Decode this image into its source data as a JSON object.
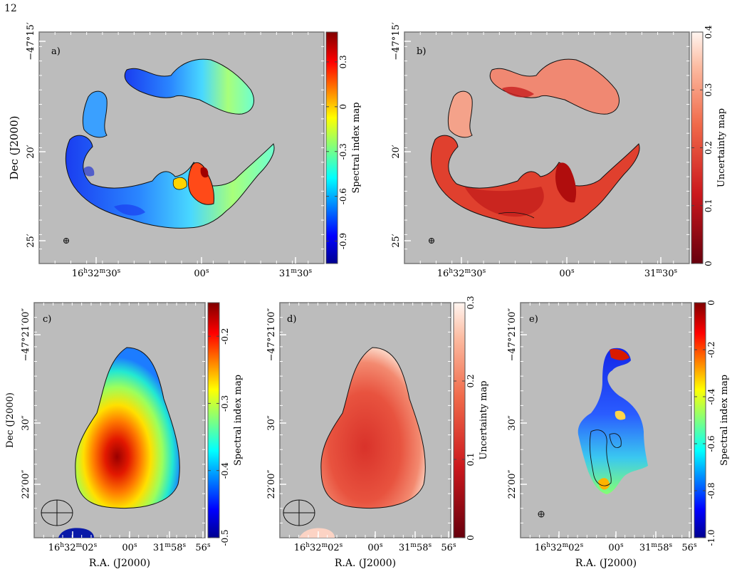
{
  "page_number": "12",
  "labels": {
    "dec": "Dec (J2000)",
    "ra": "R.A. (J2000)",
    "spectral": "Spectral index map",
    "uncert": "Uncertainty map"
  },
  "panels": [
    {
      "id": "a",
      "tag": "a)",
      "colormap": "jet",
      "cbar_label": "Spectral index map",
      "cbar_range": [
        -1.05,
        0.5
      ],
      "cbar_ticks": [
        "0.3",
        "0",
        "-0.3",
        "-0.6",
        "-0.9"
      ],
      "y_ticks": [
        "−47°15′",
        "20′",
        "25′"
      ],
      "x_ticks": [
        "16h32m30s",
        "00s",
        "31m30s"
      ]
    },
    {
      "id": "b",
      "tag": "b)",
      "colormap": "reds",
      "cbar_label": "Uncertainty map",
      "cbar_range": [
        0,
        0.4
      ],
      "cbar_ticks": [
        "0.4",
        "0.3",
        "0.2",
        "0.1",
        "0"
      ],
      "y_ticks": [
        "−47°15′",
        "20′",
        "25′"
      ],
      "x_ticks": [
        "16h32m30s",
        "00s",
        "31m30s"
      ]
    },
    {
      "id": "c",
      "tag": "c)",
      "colormap": "jet",
      "cbar_label": "Spectral index map",
      "cbar_range": [
        -0.5,
        -0.15
      ],
      "cbar_ticks": [
        "-0.2",
        "-0.3",
        "-0.4",
        "-0.5"
      ],
      "y_ticks": [
        "−47°21′00″",
        "30″",
        "22′00″"
      ],
      "x_ticks": [
        "16h32m02s",
        "00s",
        "31m58s",
        "56s"
      ]
    },
    {
      "id": "d",
      "tag": "d)",
      "colormap": "reds",
      "cbar_label": "Uncertainty map",
      "cbar_range": [
        0,
        0.3
      ],
      "cbar_ticks": [
        "0.3",
        "0.2",
        "0.1",
        "0"
      ],
      "y_ticks": [
        "−47°21′00″",
        "30″",
        "22′00″"
      ],
      "x_ticks": [
        "16h32m02s",
        "00s",
        "31m58s",
        "56s"
      ]
    },
    {
      "id": "e",
      "tag": "e)",
      "colormap": "jet",
      "cbar_label": "Spectral index map",
      "cbar_range": [
        -1.0,
        0
      ],
      "cbar_ticks": [
        "0",
        "-0.2",
        "-0.4",
        "-0.6",
        "-0.8",
        "-1.0"
      ],
      "y_ticks": [
        "−47°21′00″",
        "30″",
        "22′00″"
      ],
      "x_ticks": [
        "16h32m02s",
        "00s",
        "31m58s",
        "56s"
      ]
    }
  ]
}
